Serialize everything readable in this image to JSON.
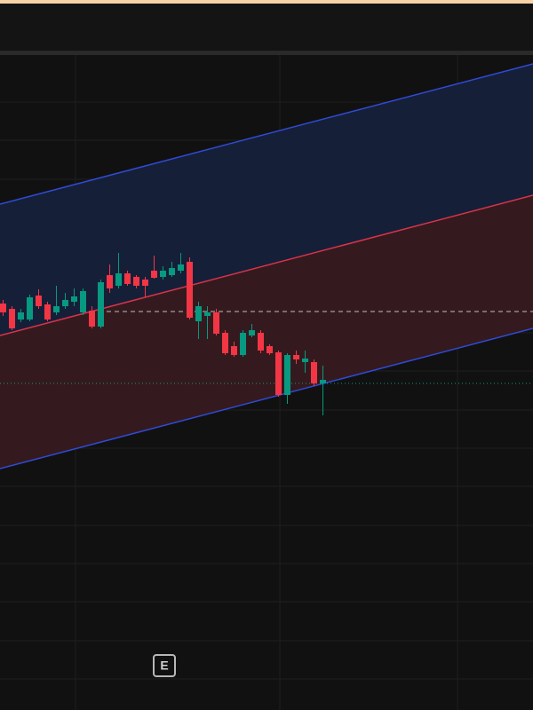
{
  "chart_data": {
    "type": "candlestick",
    "ylim": [
      0,
      738
    ],
    "up_color": "#089981",
    "down_color": "#f23645",
    "candles": {
      "open": [
        458,
        452,
        440,
        440,
        467,
        457,
        448,
        455,
        460,
        448,
        450,
        432,
        490,
        478,
        492,
        488,
        485,
        495,
        488,
        490,
        495,
        505,
        438,
        444,
        448,
        425,
        410,
        400,
        422,
        425,
        410,
        403,
        355,
        400,
        392,
        392,
        368
      ],
      "high": [
        462,
        455,
        452,
        468,
        474,
        460,
        478,
        470,
        475,
        475,
        455,
        485,
        502,
        515,
        495,
        490,
        488,
        512,
        500,
        505,
        515,
        510,
        460,
        455,
        452,
        428,
        415,
        428,
        435,
        428,
        412,
        405,
        402,
        405,
        405,
        395,
        388
      ],
      "low": [
        444,
        428,
        437,
        438,
        452,
        438,
        445,
        452,
        455,
        445,
        430,
        430,
        470,
        475,
        478,
        475,
        465,
        486,
        485,
        488,
        492,
        440,
        418,
        418,
        422,
        400,
        398,
        398,
        420,
        402,
        400,
        353,
        345,
        390,
        380,
        365,
        332
      ],
      "close": [
        448,
        430,
        448,
        465,
        455,
        440,
        455,
        462,
        466,
        472,
        432,
        482,
        475,
        492,
        480,
        478,
        478,
        487,
        495,
        498,
        502,
        442,
        455,
        448,
        424,
        402,
        400,
        425,
        428,
        405,
        402,
        355,
        400,
        395,
        396,
        368,
        372
      ]
    },
    "channel": {
      "upper": [
        570,
        728
      ],
      "middle": [
        422,
        580
      ],
      "lower": [
        272,
        430
      ],
      "upper_color": "#2f4bd6",
      "middle_color": "#d8334a",
      "upper_fill": "#161f38",
      "lower_fill": "#341a1e"
    },
    "reference_price": 449,
    "last_price": 368,
    "event_marker": "E"
  }
}
